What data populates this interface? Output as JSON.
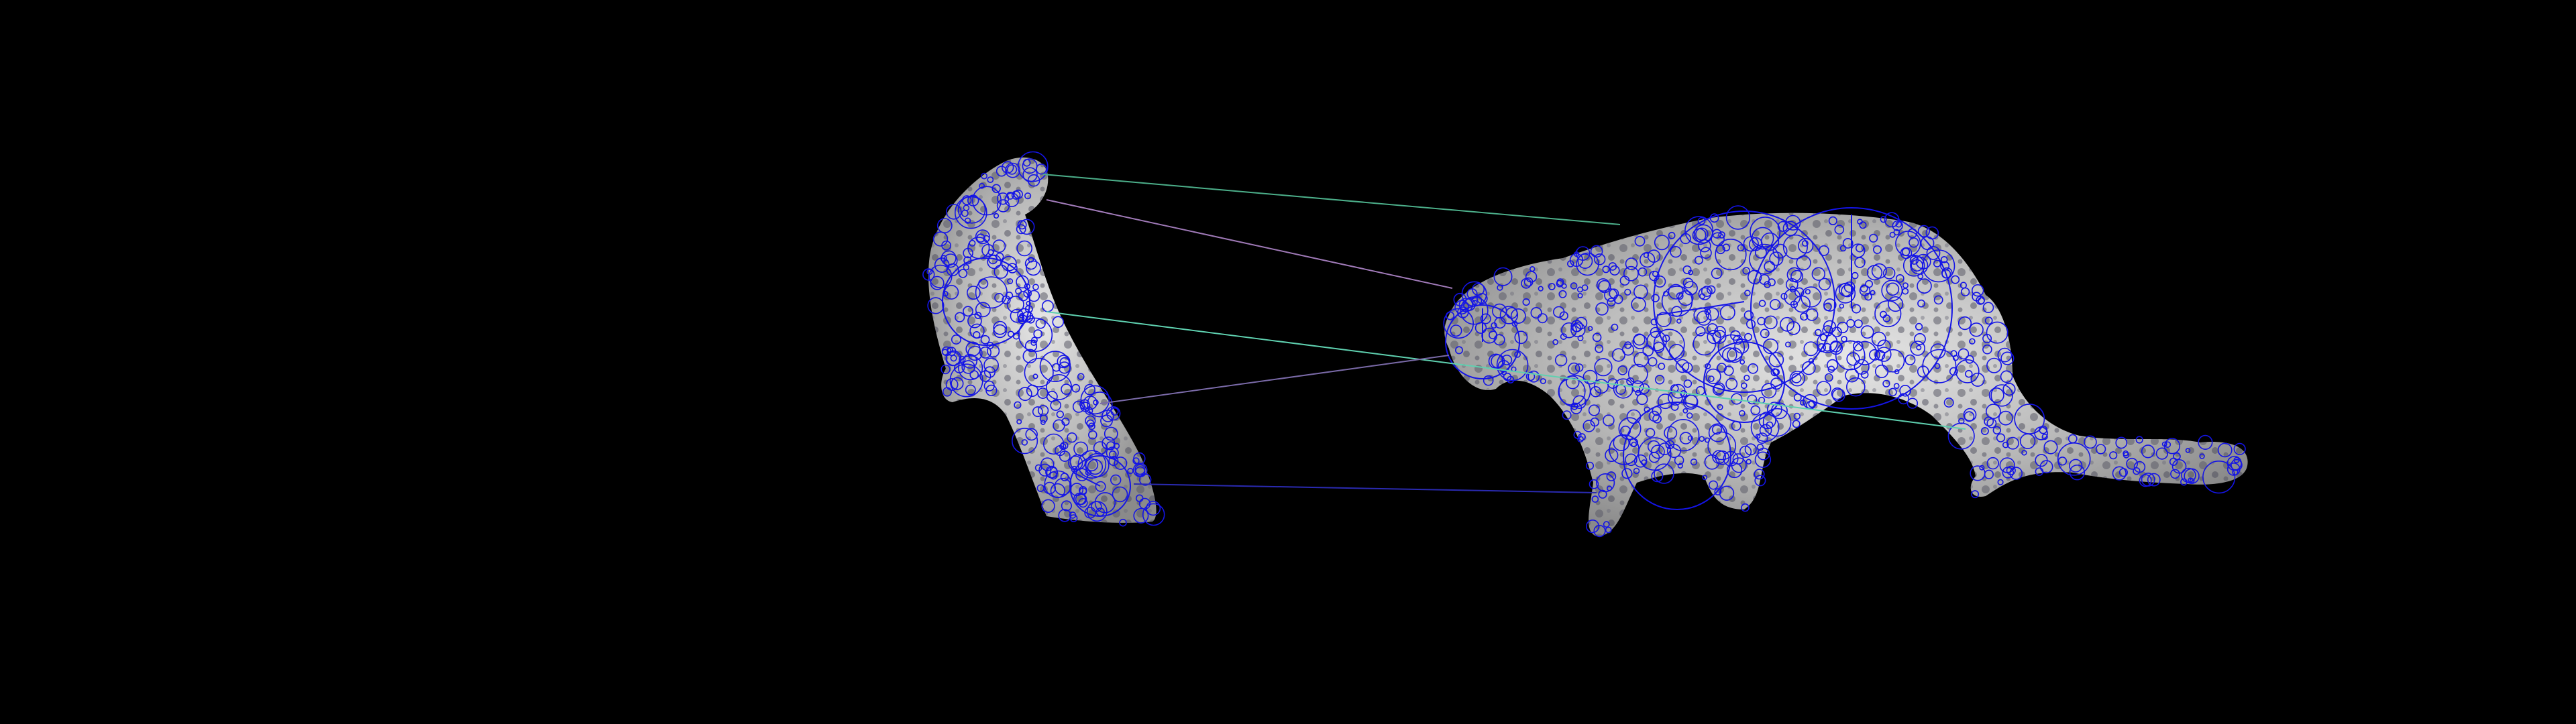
{
  "scene": {
    "description_hidden": true,
    "colors": {
      "background": "#000000",
      "keypoint": "#1414e6",
      "surface_light": "#d8d8d8",
      "surface_mid": "#9a9a9a",
      "surface_dark": "#3a3a4a"
    },
    "objects": [
      "left-object",
      "right-object"
    ],
    "match_count": 5
  }
}
